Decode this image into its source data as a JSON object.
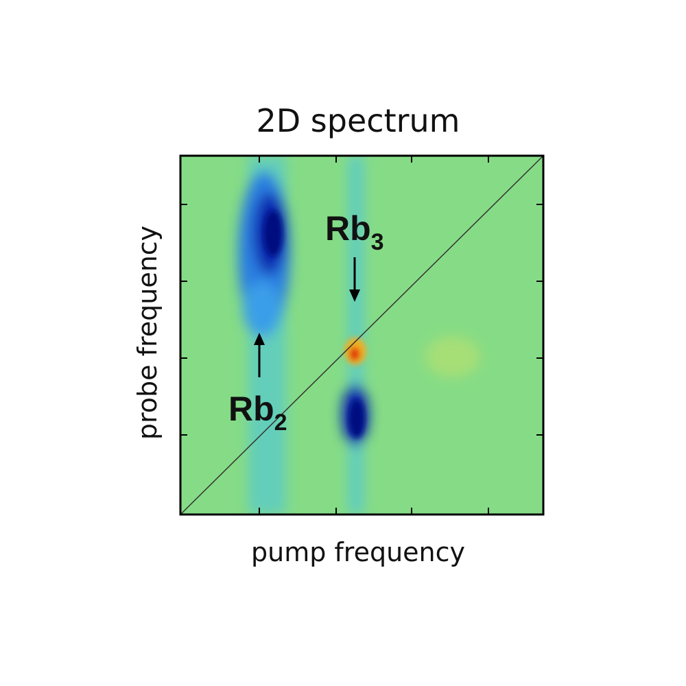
{
  "figure": {
    "title": "2D spectrum",
    "x_label": "pump frequency",
    "y_label": "probe frequency",
    "annotations": [
      {
        "text": "Rb",
        "sub": "3"
      },
      {
        "text": "Rb",
        "sub": "2"
      }
    ]
  }
}
